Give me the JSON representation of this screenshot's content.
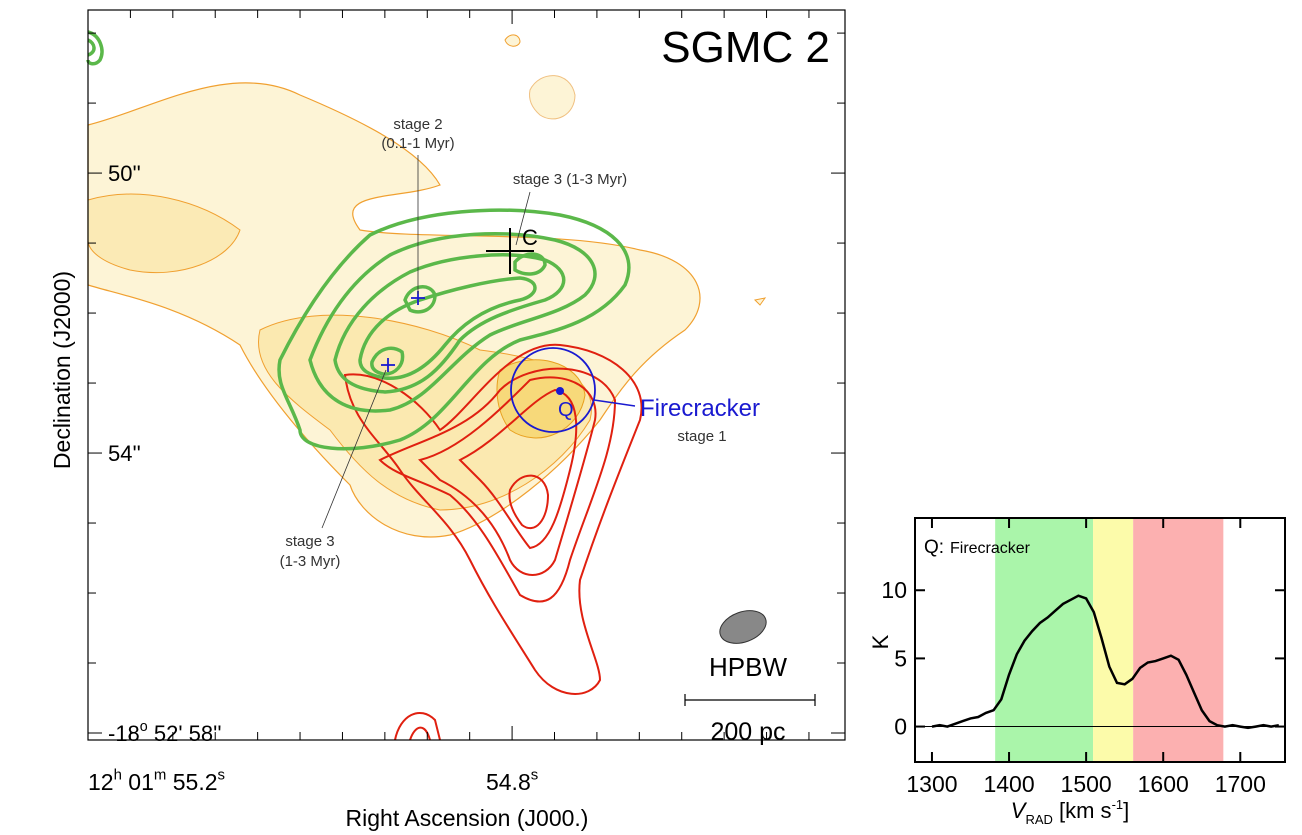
{
  "chart_data": [
    {
      "type": "map",
      "title": "SGMC 2",
      "xlabel": "Right Ascension (J000.)",
      "ylabel": "Declination (J2000)",
      "xlim": [
        55.2,
        54.486
      ],
      "ylim": [
        58.1,
        47.67
      ],
      "xticks": [
        {
          "value": 55.2,
          "label": [
            "12",
            "h",
            " 01",
            "m",
            " 55.2",
            "s"
          ]
        },
        {
          "value": 54.8,
          "label": [
            "54.8",
            "s"
          ]
        }
      ],
      "xminor": [
        55.16,
        55.12,
        55.08,
        55.04,
        55.0,
        54.96,
        54.92,
        54.88,
        54.84,
        54.76,
        54.72,
        54.68,
        54.64,
        54.6,
        54.56,
        54.52
      ],
      "yticks": [
        {
          "value": 50,
          "label": [
            "50''"
          ]
        },
        {
          "value": 54,
          "label": [
            "54''"
          ]
        },
        {
          "value": 58,
          "label": [
            "-18",
            "o",
            " 52' 58''"
          ]
        }
      ],
      "yminor": [
        48,
        49,
        51,
        52,
        53,
        55,
        56,
        57
      ],
      "annotations": [
        "stage 2",
        "(0.1-1 Myr)",
        "stage 3 (1-3 Myr)",
        "C",
        "Q",
        "Firecracker",
        "stage 1",
        "stage 3",
        "(1-3 Myr)",
        "HPBW",
        "200 pc"
      ]
    },
    {
      "type": "line",
      "ylabel": "K",
      "xlabel": [
        "V",
        "RAD",
        " [km s",
        "-1",
        "]"
      ],
      "annotations": [
        "Q:",
        "Firecracker"
      ],
      "x": [
        1300,
        1310,
        1320,
        1330,
        1340,
        1350,
        1360,
        1370,
        1380,
        1390,
        1400,
        1410,
        1420,
        1430,
        1440,
        1450,
        1460,
        1470,
        1480,
        1490,
        1500,
        1510,
        1520,
        1530,
        1540,
        1550,
        1560,
        1570,
        1580,
        1590,
        1600,
        1610,
        1620,
        1630,
        1640,
        1650,
        1660,
        1670,
        1680,
        1690,
        1700,
        1710,
        1720,
        1730,
        1740,
        1750
      ],
      "values": [
        0,
        0.1,
        0,
        0.2,
        0.4,
        0.6,
        0.7,
        1.0,
        1.2,
        2.0,
        3.8,
        5.3,
        6.3,
        7.0,
        7.6,
        8.0,
        8.5,
        9.0,
        9.3,
        9.6,
        9.4,
        8.4,
        6.5,
        4.4,
        3.2,
        3.1,
        3.5,
        4.3,
        4.7,
        4.8,
        5.0,
        5.2,
        4.9,
        3.8,
        2.5,
        1.2,
        0.4,
        0.1,
        0,
        0.1,
        0,
        -0.1,
        0,
        0.1,
        0,
        0.1
      ],
      "color": "#000000",
      "bands": [
        {
          "range": [
            1382,
            1509
          ],
          "color": "#aaf5aa"
        },
        {
          "range": [
            1509,
            1561
          ],
          "color": "#fcfbaa"
        },
        {
          "range": [
            1561,
            1678
          ],
          "color": "#fcb0b0"
        }
      ],
      "hline": 0,
      "xlim": [
        1278,
        1758
      ],
      "ylim": [
        -2.6,
        15.3
      ],
      "xticks": [
        1300,
        1400,
        1500,
        1600,
        1700
      ],
      "yticks": [
        0,
        5,
        10
      ]
    }
  ]
}
